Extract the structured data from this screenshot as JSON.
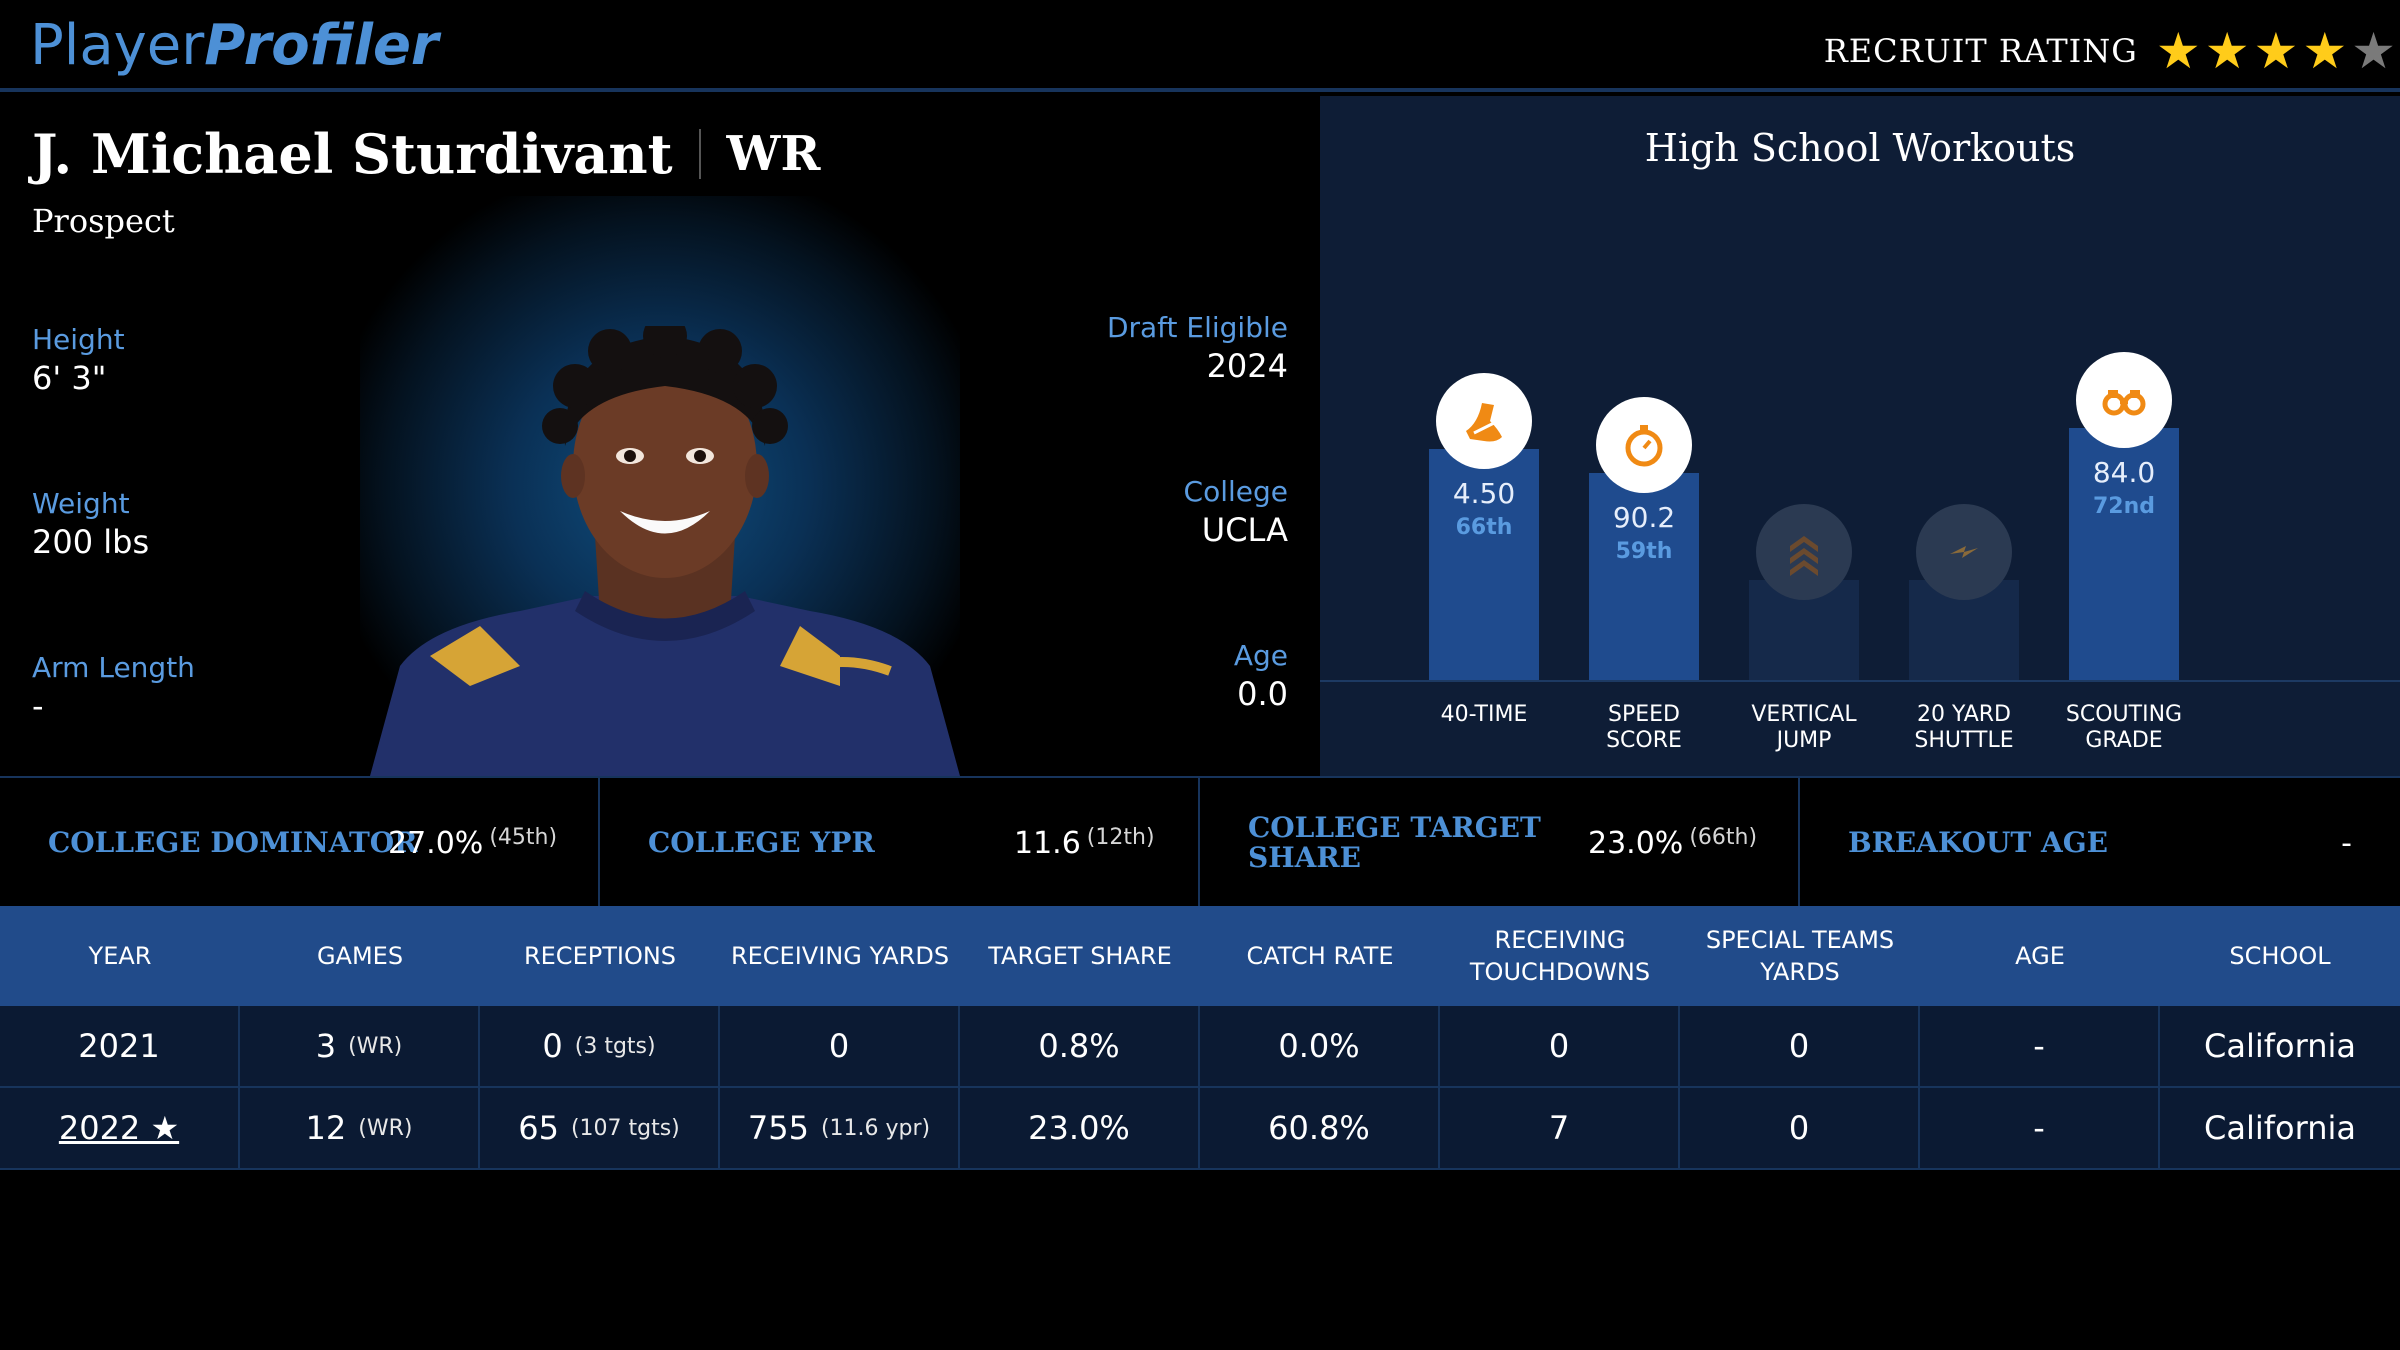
{
  "header": {
    "logo_part1": "Player",
    "logo_part2": "Profiler",
    "rating_label": "RECRUIT RATING",
    "stars_filled": 4,
    "stars_total": 5,
    "star_glyph": "★"
  },
  "player": {
    "name": "J. Michael Sturdivant",
    "position": "WR",
    "status": "Prospect",
    "left_attrs": [
      {
        "label": "Height",
        "value": "6' 3\""
      },
      {
        "label": "Weight",
        "value": "200 lbs"
      },
      {
        "label": "Arm Length",
        "value": "-"
      }
    ],
    "right_attrs": [
      {
        "label": "Draft Eligible",
        "value": "2024"
      },
      {
        "label": "College",
        "value": "UCLA"
      },
      {
        "label": "Age",
        "value": "0.0"
      }
    ]
  },
  "workouts": {
    "title": "High School Workouts",
    "items": [
      {
        "label_l1": "40-TIME",
        "label_l2": "",
        "value": "4.50",
        "pct": "66th",
        "percentile": 66,
        "icon": "shoe-icon",
        "active": true
      },
      {
        "label_l1": "SPEED",
        "label_l2": "SCORE",
        "value": "90.2",
        "pct": "59th",
        "percentile": 59,
        "icon": "stopwatch-icon",
        "active": true
      },
      {
        "label_l1": "VERTICAL",
        "label_l2": "JUMP",
        "value": "",
        "pct": "",
        "percentile": 26,
        "icon": "chevrons-up-icon",
        "active": false
      },
      {
        "label_l1": "20 YARD",
        "label_l2": "SHUTTLE",
        "value": "",
        "pct": "",
        "percentile": 26,
        "icon": "lightning-icon",
        "active": false
      },
      {
        "label_l1": "SCOUTING",
        "label_l2": "GRADE",
        "value": "84.0",
        "pct": "72nd",
        "percentile": 72,
        "icon": "binoculars-icon",
        "active": true
      }
    ]
  },
  "stats_strip": [
    {
      "label": "COLLEGE DOMINATOR",
      "value": "27.0%",
      "rank": "(45th)"
    },
    {
      "label": "COLLEGE YPR",
      "value": "11.6",
      "rank": "(12th)"
    },
    {
      "label": "COLLEGE TARGET SHARE",
      "value": "23.0%",
      "rank": "(66th)"
    },
    {
      "label": "BREAKOUT AGE",
      "value": "-",
      "rank": ""
    }
  ],
  "table": {
    "headers": [
      "YEAR",
      "GAMES",
      "RECEPTIONS",
      "RECEIVING YARDS",
      "TARGET SHARE",
      "CATCH RATE",
      "RECEIVING TOUCHDOWNS",
      "SPECIAL TEAMS YARDS",
      "AGE",
      "SCHOOL"
    ],
    "rows": [
      {
        "year": "2021",
        "games": "3",
        "games_note": "(WR)",
        "receptions": "0",
        "rec_note": "(3 tgts)",
        "yards": "0",
        "yards_note": "",
        "target_share": "0.8%",
        "catch_rate": "0.0%",
        "tds": "0",
        "st_yards": "0",
        "age": "-",
        "school": "California",
        "link": false
      },
      {
        "year": "2022 ★",
        "games": "12",
        "games_note": "(WR)",
        "receptions": "65",
        "rec_note": "(107 tgts)",
        "yards": "755",
        "yards_note": "(11.6 ypr)",
        "target_share": "23.0%",
        "catch_rate": "60.8%",
        "tds": "7",
        "st_yards": "0",
        "age": "-",
        "school": "California",
        "link": true
      }
    ]
  }
}
